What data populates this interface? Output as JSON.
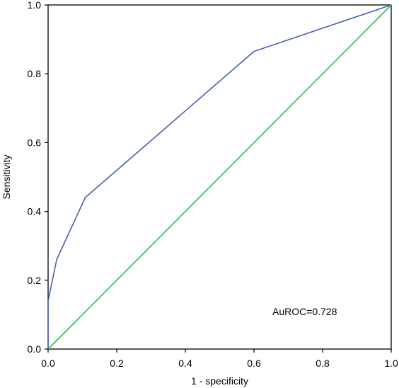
{
  "chart_data": {
    "type": "line",
    "xlabel": "1 - specificity",
    "ylabel": "Sensitivity",
    "xlim": [
      0,
      1
    ],
    "ylim": [
      0,
      1
    ],
    "xticks": [
      "0.0",
      "0.2",
      "0.4",
      "0.6",
      "0.8",
      "1.0"
    ],
    "yticks": [
      "0.0",
      "0.2",
      "0.4",
      "0.6",
      "0.8",
      "1.0"
    ],
    "grid": false,
    "legend": "none",
    "annotation": "AuROC=0.728",
    "series": [
      {
        "color": "#4a5fb0",
        "x": [
          0.0,
          0.0,
          0.025,
          0.108,
          0.6,
          1.0
        ],
        "y": [
          0.0,
          0.14,
          0.26,
          0.44,
          0.865,
          1.0
        ]
      },
      {
        "color": "#2fbf4a",
        "x": [
          0.0,
          1.0
        ],
        "y": [
          0.0,
          1.0
        ]
      }
    ]
  }
}
